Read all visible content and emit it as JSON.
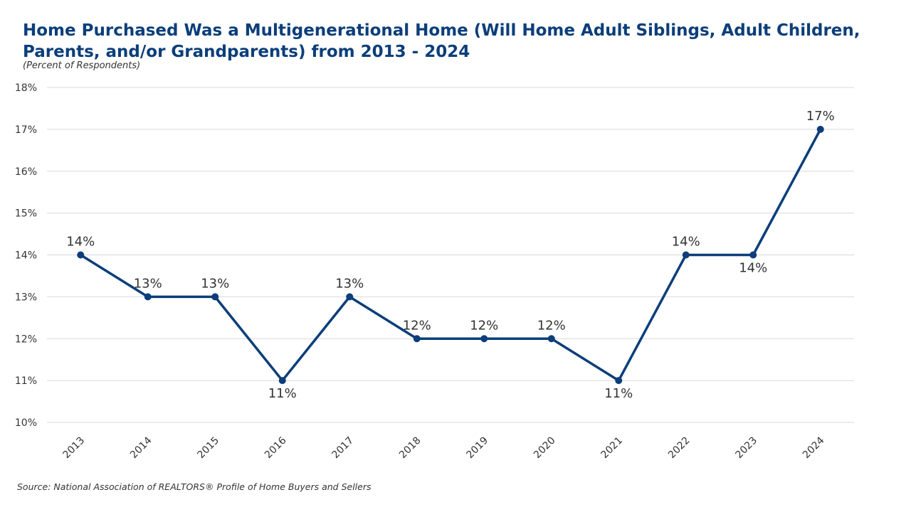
{
  "header": {
    "title": "Home Purchased Was a Multigenerational Home (Will Home Adult Siblings, Adult Children, Parents, and/or Grandparents) from 2013 - 2024",
    "subtitle": "(Percent of Respondents)"
  },
  "footer": {
    "source": "Source: National Association of REALTORS® Profile of Home Buyers and Sellers"
  },
  "colors": {
    "line": "#0b3e7a",
    "grid": "#d9d9d9",
    "title": "#0b3e7a"
  },
  "chart_data": {
    "type": "line",
    "title": "Home Purchased Was a Multigenerational Home (Will Home Adult Siblings, Adult Children, Parents, and/or Grandparents) from 2013 - 2024",
    "subtitle": "(Percent of Respondents)",
    "xlabel": "",
    "ylabel": "",
    "categories": [
      "2013",
      "2014",
      "2015",
      "2016",
      "2017",
      "2018",
      "2019",
      "2020",
      "2021",
      "2022",
      "2023",
      "2024"
    ],
    "series": [
      {
        "values": [
          14,
          13,
          13,
          11,
          13,
          12,
          12,
          12,
          11,
          14,
          14,
          17
        ],
        "labels": [
          "14%",
          "13%",
          "13%",
          "11%",
          "13%",
          "12%",
          "12%",
          "12%",
          "11%",
          "14%",
          "14%",
          "17%"
        ],
        "label_positions": [
          "above",
          "above",
          "above",
          "below",
          "above",
          "above",
          "above",
          "above",
          "below",
          "above",
          "below",
          "above"
        ]
      }
    ],
    "ylim": [
      10,
      18
    ],
    "yticks": [
      10,
      11,
      12,
      13,
      14,
      15,
      16,
      17,
      18
    ],
    "ytick_labels": [
      "10%",
      "11%",
      "12%",
      "13%",
      "14%",
      "15%",
      "16%",
      "17%",
      "18%"
    ],
    "grid": true,
    "legend": "none"
  }
}
